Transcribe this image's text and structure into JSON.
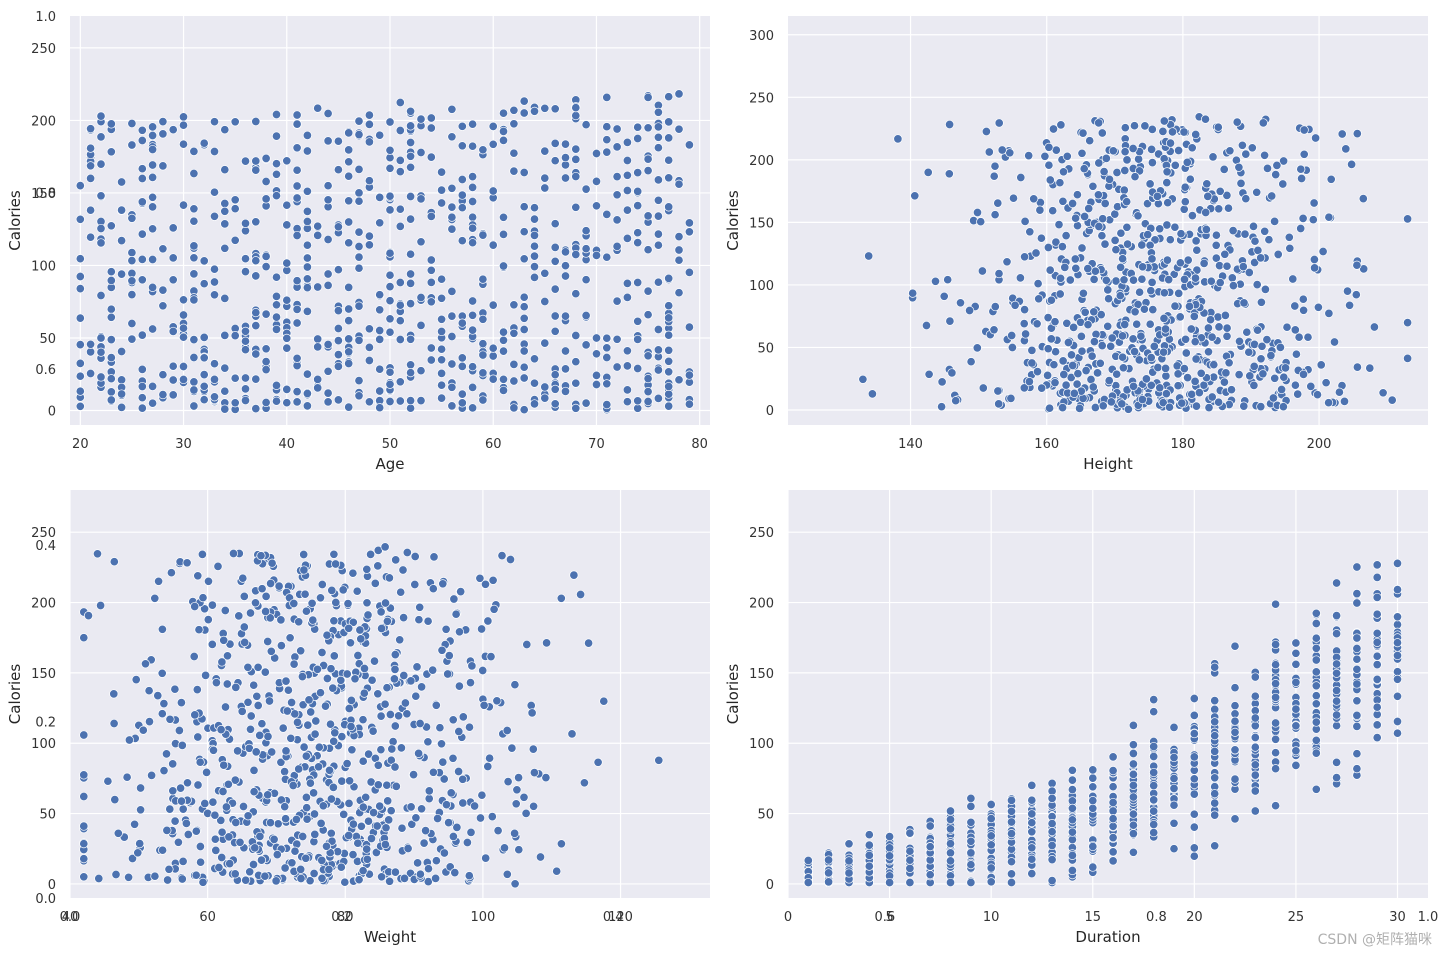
{
  "figure": {
    "background_axes_color": "#eaeaf2",
    "grid_color": "#ffffff",
    "marker_color": "#4c72b0",
    "watermark": "CSDN @矩阵猫咪",
    "overlay_axes": {
      "x_ticks": [
        "0.0",
        "0.2",
        "0.4",
        "0.6",
        "0.8",
        "1.0"
      ],
      "y_ticks": [
        "0.0",
        "0.2",
        "0.4",
        "0.6",
        "0.8",
        "1.0"
      ]
    }
  },
  "chart_data": [
    {
      "type": "scatter",
      "xlabel": "Age",
      "ylabel": "Calories",
      "x_ticks": [
        20,
        30,
        40,
        50,
        60,
        70,
        80
      ],
      "y_ticks": [
        0,
        50,
        100,
        150,
        200,
        250
      ],
      "xlim": [
        19,
        81
      ],
      "ylim": [
        -10,
        272
      ],
      "grid": true
    },
    {
      "type": "scatter",
      "xlabel": "Height",
      "ylabel": "Calories",
      "x_ticks": [
        140,
        160,
        180,
        200
      ],
      "y_ticks": [
        0,
        50,
        100,
        150,
        200,
        250,
        300
      ],
      "xlim": [
        122,
        216
      ],
      "ylim": [
        -12,
        315
      ],
      "grid": true
    },
    {
      "type": "scatter",
      "xlabel": "Weight",
      "ylabel": "Calories",
      "x_ticks": [
        40,
        60,
        80,
        100,
        120
      ],
      "y_ticks": [
        0,
        50,
        100,
        150,
        200,
        250
      ],
      "xlim": [
        40,
        133
      ],
      "ylim": [
        -10,
        280
      ],
      "grid": true
    },
    {
      "type": "scatter",
      "xlabel": "Duration",
      "ylabel": "Calories",
      "x_ticks": [
        0,
        5,
        10,
        15,
        20,
        25,
        30
      ],
      "y_ticks": [
        0,
        50,
        100,
        150,
        200,
        250
      ],
      "xlim": [
        0,
        31.5
      ],
      "ylim": [
        -10,
        280
      ],
      "grid": true
    }
  ]
}
